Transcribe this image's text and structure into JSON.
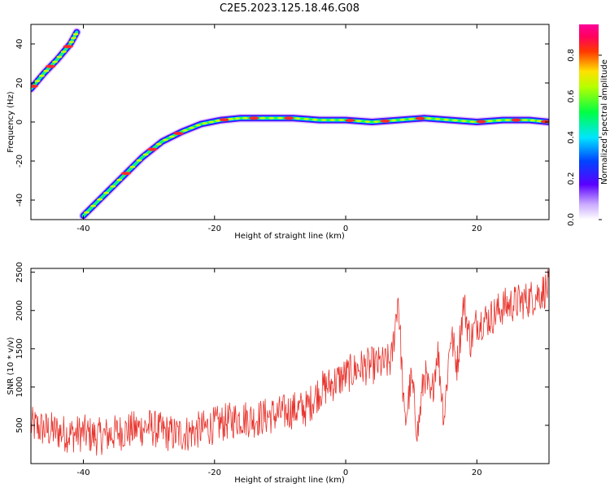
{
  "chart_data": [
    {
      "type": "heatmap",
      "title": "C2E5.2023.125.18.46.G08",
      "xlabel": "Height of straight line (km)",
      "ylabel": "Frequency (Hz)",
      "xlim": [
        -48,
        31
      ],
      "ylim": [
        -50,
        50
      ],
      "xticks": [
        "-40",
        "-20",
        "0",
        "20"
      ],
      "xtick_values": [
        -40,
        -20,
        0,
        20
      ],
      "yticks": [
        "40",
        "20",
        "0",
        "-20",
        "-40"
      ],
      "ytick_values": [
        40,
        20,
        0,
        -20,
        -40
      ],
      "colorbar": {
        "label": "Normalized spectral amplitude",
        "range": [
          0,
          0.95
        ],
        "ticks": [
          "0.0",
          "0.2",
          "0.4",
          "0.6",
          "0.8"
        ],
        "tick_values": [
          0,
          0.2,
          0.4,
          0.6,
          0.8
        ],
        "colormap": "rainbow (white-purple-blue-cyan-green-yellow-red-magenta)"
      },
      "ridges": [
        {
          "x": [
            -48,
            -46,
            -44,
            -42,
            -41
          ],
          "y": [
            17,
            25,
            32,
            40,
            46
          ],
          "amplitude": 0.45
        },
        {
          "x": [
            -40,
            -37,
            -34,
            -31,
            -28,
            -25,
            -22,
            -19,
            -16,
            -12,
            -8,
            -4,
            0,
            4,
            8,
            12,
            16,
            20,
            24,
            28,
            31
          ],
          "y": [
            -48,
            -38,
            -28,
            -18,
            -10,
            -5,
            -1,
            1,
            2,
            2,
            2,
            1,
            1,
            0,
            1,
            2,
            1,
            0,
            1,
            1,
            0
          ],
          "amplitude": 0.55
        }
      ],
      "grid": false
    },
    {
      "type": "line",
      "xlabel": "Height of straight line (km)",
      "ylabel": "SNR (10 * v/v)",
      "xlim": [
        -48,
        31
      ],
      "ylim": [
        0,
        2550
      ],
      "xticks": [
        "-40",
        "-20",
        "0",
        "20"
      ],
      "xtick_values": [
        -40,
        -20,
        0,
        20
      ],
      "yticks": [
        "2500",
        "2000",
        "1500",
        "1000",
        "500"
      ],
      "ytick_values": [
        2500,
        2000,
        1500,
        1000,
        500
      ],
      "series": [
        {
          "color": "#e8332c",
          "x": [
            -48,
            -46,
            -44,
            -42,
            -40,
            -38,
            -36,
            -34,
            -32,
            -30,
            -28,
            -26,
            -24,
            -22,
            -20,
            -18,
            -16,
            -14,
            -12,
            -10,
            -8,
            -6,
            -4,
            -2,
            0,
            2,
            4,
            6,
            7,
            8,
            9,
            10,
            11,
            12,
            13,
            14,
            15,
            16,
            17,
            18,
            19,
            20,
            22,
            24,
            26,
            28,
            30,
            31
          ],
          "y": [
            500,
            450,
            420,
            380,
            400,
            350,
            380,
            420,
            450,
            480,
            420,
            380,
            400,
            450,
            500,
            550,
            600,
            580,
            620,
            650,
            700,
            720,
            950,
            1050,
            1150,
            1250,
            1280,
            1300,
            1350,
            2200,
            500,
            1100,
            400,
            1200,
            800,
            1500,
            600,
            1700,
            1300,
            2100,
            1600,
            1850,
            1900,
            2050,
            2100,
            2150,
            2250,
            2300
          ],
          "noise": 250
        }
      ],
      "grid": false
    }
  ],
  "colors": {
    "line": "#e8332c",
    "axis": "#000000",
    "background": "#ffffff"
  }
}
